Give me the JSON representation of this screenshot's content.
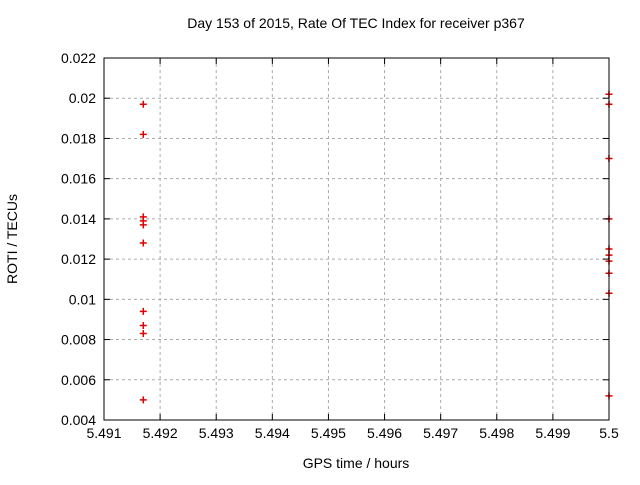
{
  "title": "Day 153 of 2015, Rate Of TEC Index for receiver p367",
  "xlabel": "GPS time / hours",
  "ylabel": "ROTI / TECUs",
  "chart_data": {
    "type": "scatter",
    "title": "Day 153 of 2015, Rate Of TEC Index for receiver p367",
    "xlabel": "GPS time / hours",
    "ylabel": "ROTI / TECUs",
    "xlim": [
      5.491,
      5.5
    ],
    "ylim": [
      0.004,
      0.022
    ],
    "grid": true,
    "grid_style": "dashed",
    "grid_color": "#aaaaaa",
    "axis_color": "#000000",
    "legend": "none",
    "x_ticks": {
      "values": [
        5.491,
        5.492,
        5.493,
        5.494,
        5.495,
        5.496,
        5.497,
        5.498,
        5.499,
        5.5
      ],
      "labels": [
        "5.491",
        "5.492",
        "5.493",
        "5.494",
        "5.495",
        "5.496",
        "5.497",
        "5.498",
        "5.499",
        "5.5"
      ]
    },
    "y_ticks": {
      "values": [
        0.004,
        0.006,
        0.008,
        0.01,
        0.012,
        0.014,
        0.016,
        0.018,
        0.02,
        0.022
      ],
      "labels": [
        "0.004",
        "0.006",
        "0.008",
        "0.01",
        "0.012",
        "0.014",
        "0.016",
        "0.018",
        "0.02",
        "0.022"
      ]
    },
    "series": [
      {
        "name": "ROTI",
        "marker": "plus",
        "color": "#e00000",
        "points": [
          [
            5.4917,
            0.0197
          ],
          [
            5.4917,
            0.0182
          ],
          [
            5.4917,
            0.0141
          ],
          [
            5.4917,
            0.0139
          ],
          [
            5.4917,
            0.0137
          ],
          [
            5.4917,
            0.0128
          ],
          [
            5.4917,
            0.0094
          ],
          [
            5.4917,
            0.0087
          ],
          [
            5.4917,
            0.0083
          ],
          [
            5.4917,
            0.005
          ],
          [
            5.5,
            0.0202
          ],
          [
            5.5,
            0.0197
          ],
          [
            5.5,
            0.017
          ],
          [
            5.5,
            0.014
          ],
          [
            5.5,
            0.0125
          ],
          [
            5.5,
            0.0122
          ],
          [
            5.5,
            0.0119
          ],
          [
            5.5,
            0.0113
          ],
          [
            5.5,
            0.0103
          ],
          [
            5.5,
            0.0052
          ]
        ]
      }
    ]
  }
}
